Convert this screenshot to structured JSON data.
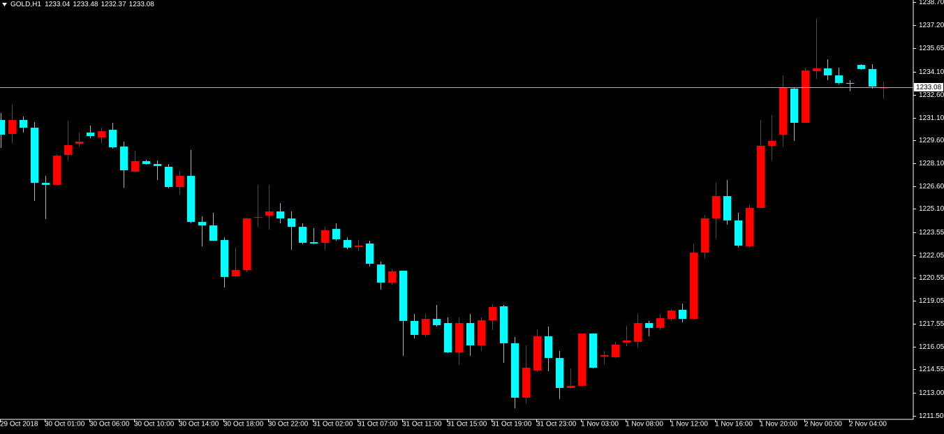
{
  "chart_data": {
    "type": "candlestick",
    "title": "GOLD,H1",
    "up_color": "#ff0000",
    "down_color": "#00ffff",
    "axis_color": "#ffffff",
    "price_line_color": "#b0b0b0",
    "grid": false,
    "categories": [
      "29 Oct 2018",
      null,
      null,
      null,
      "30 Oct 01:00",
      null,
      null,
      null,
      "30 Oct 06:00",
      null,
      null,
      null,
      "30 Oct 10:00",
      null,
      null,
      null,
      "30 Oct 14:00",
      null,
      null,
      null,
      "30 Oct 18:00",
      null,
      null,
      null,
      "30 Oct 22:00",
      null,
      null,
      null,
      "31 Oct 02:00",
      null,
      null,
      null,
      "31 Oct 07:00",
      null,
      null,
      null,
      "31 Oct 11:00",
      null,
      null,
      null,
      "31 Oct 15:00",
      null,
      null,
      null,
      "31 Oct 19:00",
      null,
      null,
      null,
      "31 Oct 23:00",
      null,
      null,
      null,
      "1 Nov 03:00",
      null,
      null,
      null,
      "1 Nov 08:00",
      null,
      null,
      null,
      "1 Nov 12:00",
      null,
      null,
      null,
      "1 Nov 16:00",
      null,
      null,
      null,
      "1 Nov 20:00",
      null,
      null,
      null,
      "2 Nov 00:00",
      null,
      null,
      null,
      "2 Nov 04:00",
      null,
      null,
      null
    ],
    "open": [
      1230.95,
      1230.03,
      1230.95,
      1230.44,
      1226.81,
      1226.68,
      1228.65,
      1229.38,
      1230.12,
      1229.8,
      1230.3,
      1229.2,
      1227.55,
      1228.24,
      1228.05,
      1227.87,
      1226.54,
      1227.27,
      1224.24,
      1224.01,
      1223.05,
      1220.66,
      1221.08,
      1224.52,
      1224.66,
      1224.93,
      1224.47,
      1223.92,
      1222.91,
      1222.87,
      1223.78,
      1223.05,
      1222.59,
      1222.82,
      1221.44,
      1220.25,
      1221.03,
      1217.73,
      1216.81,
      1217.86,
      1217.59,
      1215.66,
      1217.59,
      1216.12,
      1217.77,
      1218.69,
      1216.26,
      1212.68,
      1214.47,
      1216.72,
      1215.29,
      1213.32,
      1213.46,
      1216.9,
      1215.39,
      1215.34,
      1216.3,
      1216.35,
      1217.59,
      1217.27,
      1217.86,
      1218.46,
      1217.86,
      1222.22,
      1224.47,
      1225.94,
      1224.34,
      1222.64,
      1225.16,
      1229.25,
      1229.98,
      1233.01,
      1230.76,
      1234.16,
      1234.34,
      1233.88,
      1233.38,
      1234.57,
      1234.3,
      1233.04
    ],
    "high": [
      1231.4,
      1231.95,
      1231.18,
      1230.81,
      1227.27,
      1228.7,
      1230.9,
      1230.12,
      1230.58,
      1230.44,
      1230.76,
      1229.52,
      1228.93,
      1228.33,
      1228.28,
      1228.05,
      1227.59,
      1228.97,
      1224.61,
      1224.84,
      1223.23,
      1222.55,
      1224.52,
      1226.68,
      1226.68,
      1225.48,
      1224.93,
      1224.15,
      1223.83,
      1223.88,
      1224.15,
      1223.23,
      1223.05,
      1223.0,
      1221.63,
      1221.12,
      1221.03,
      1218.19,
      1218.19,
      1218.78,
      1217.96,
      1217.96,
      1218.19,
      1217.96,
      1218.83,
      1218.78,
      1216.67,
      1216.12,
      1217.18,
      1217.36,
      1215.75,
      1214.6,
      1216.9,
      1216.9,
      1215.75,
      1216.35,
      1217.4,
      1218.19,
      1217.73,
      1218.19,
      1218.51,
      1218.87,
      1222.78,
      1224.7,
      1226.81,
      1227.0,
      1224.84,
      1225.39,
      1230.95,
      1231.27,
      1233.88,
      1233.1,
      1234.39,
      1237.6,
      1234.94,
      1234.39,
      1233.56,
      1234.62,
      1234.62,
      1233.48
    ],
    "low": [
      1229.11,
      1229.43,
      1230.12,
      1225.62,
      1224.43,
      1226.68,
      1228.28,
      1229.2,
      1229.75,
      1229.43,
      1229.06,
      1226.49,
      1227.5,
      1228.01,
      1227.0,
      1226.45,
      1226.03,
      1224.15,
      1222.64,
      1223.0,
      1219.93,
      1220.62,
      1220.94,
      1223.92,
      1223.74,
      1224.15,
      1222.41,
      1222.78,
      1222.78,
      1222.41,
      1223.0,
      1222.45,
      1222.32,
      1221.31,
      1219.79,
      1220.11,
      1215.43,
      1216.58,
      1216.67,
      1217.36,
      1215.61,
      1214.83,
      1215.43,
      1215.75,
      1217.13,
      1214.97,
      1211.99,
      1212.31,
      1214.37,
      1214.42,
      1212.59,
      1213.27,
      1213.41,
      1214.6,
      1214.88,
      1215.29,
      1216.07,
      1215.98,
      1216.72,
      1217.13,
      1217.73,
      1217.63,
      1217.86,
      1221.86,
      1223.14,
      1224.06,
      1222.55,
      1222.55,
      1225.16,
      1228.28,
      1229.2,
      1229.57,
      1230.76,
      1233.65,
      1233.56,
      1233.29,
      1232.83,
      1234.25,
      1233.01,
      1232.37
    ],
    "close": [
      1229.98,
      1230.95,
      1230.44,
      1226.81,
      1226.68,
      1228.6,
      1229.29,
      1229.52,
      1229.89,
      1230.21,
      1229.15,
      1227.64,
      1228.24,
      1228.05,
      1227.92,
      1226.54,
      1227.27,
      1224.24,
      1224.01,
      1223.0,
      1220.62,
      1221.08,
      1224.47,
      1224.56,
      1224.93,
      1224.47,
      1223.92,
      1222.87,
      1222.82,
      1223.69,
      1223.1,
      1222.55,
      1222.68,
      1221.49,
      1220.25,
      1220.99,
      1217.73,
      1216.81,
      1217.86,
      1217.45,
      1215.66,
      1217.59,
      1216.12,
      1217.77,
      1218.64,
      1216.26,
      1212.68,
      1214.65,
      1216.72,
      1215.29,
      1213.32,
      1213.46,
      1216.9,
      1214.65,
      1215.48,
      1216.17,
      1216.44,
      1217.59,
      1217.27,
      1217.91,
      1218.41,
      1217.86,
      1222.22,
      1224.47,
      1225.94,
      1224.34,
      1222.68,
      1225.16,
      1229.25,
      1229.57,
      1233.1,
      1230.76,
      1234.2,
      1234.34,
      1233.88,
      1233.38,
      1233.33,
      1234.3,
      1233.15,
      1233.08
    ],
    "ylim": [
      1211.3,
      1238.84
    ],
    "yticks": [
      {
        "value": 1211.5,
        "label": "1211.50"
      },
      {
        "value": 1213,
        "label": "1213.00"
      },
      1214.55,
      1216.05,
      1217.55,
      1219.05,
      1220.55,
      1222.05,
      1223.55,
      {
        "value": 1225.1,
        "label": "1225.10"
      },
      {
        "value": 1226.6,
        "label": "1226.60"
      },
      {
        "value": 1228.1,
        "label": "1228.10"
      },
      {
        "value": 1229.6,
        "label": "1229.60"
      },
      {
        "value": 1231.1,
        "label": "1231.10"
      },
      {
        "value": 1232.6,
        "label": "1232.60"
      },
      {
        "value": 1234.1,
        "label": "1234.10"
      },
      1235.65,
      {
        "value": 1237.2,
        "label": "1237.20"
      },
      {
        "value": 1238.7,
        "label": "1238.70"
      }
    ]
  }
}
